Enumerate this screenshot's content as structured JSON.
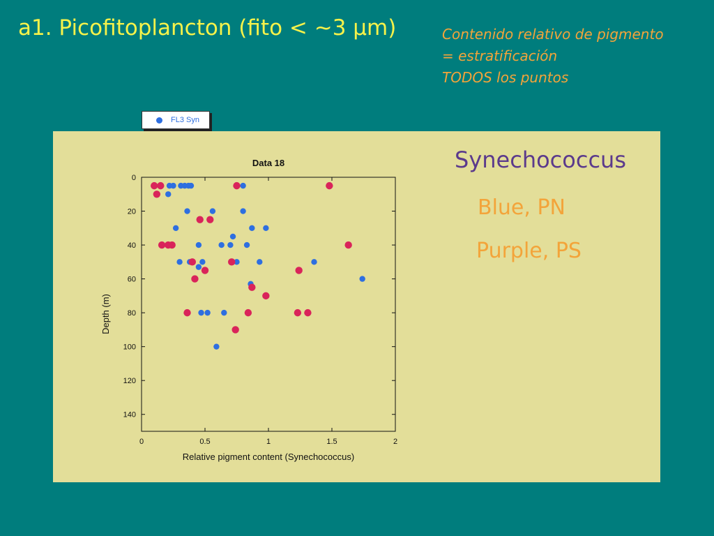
{
  "slide": {
    "title": "a1. Picofitoplancton (fito < ~3 μm)",
    "note_lines": [
      "Contenido relativo de pigmento",
      "= estratificación",
      "TODOS los puntos"
    ],
    "side_title": "Synechococcus",
    "side_blue": "Blue, PN",
    "side_purple": "Purple, PS"
  },
  "legend": {
    "label": "FL3 Syn"
  },
  "colors": {
    "blue": "#2e6fe0",
    "purple": "#d9245a",
    "background": "#007d7d",
    "panel": "#e3de99"
  },
  "chart_data": {
    "type": "scatter",
    "title": "Data 18",
    "xlabel": "Relative pigment content (Synechococcus)",
    "ylabel": "Depth (m)",
    "xlim": [
      0,
      2
    ],
    "ylim": [
      150,
      0
    ],
    "x_ticks": [
      "0",
      "0.5",
      "1",
      "1.5",
      "2"
    ],
    "y_ticks": [
      "0",
      "20",
      "40",
      "60",
      "80",
      "100",
      "120",
      "140"
    ],
    "series": [
      {
        "name": "FL3 Syn",
        "color": "#2e6fe0",
        "points": [
          [
            0.22,
            5
          ],
          [
            0.25,
            5
          ],
          [
            0.31,
            5
          ],
          [
            0.34,
            5
          ],
          [
            0.37,
            5
          ],
          [
            0.39,
            5
          ],
          [
            0.8,
            5
          ],
          [
            0.21,
            10
          ],
          [
            0.36,
            20
          ],
          [
            0.56,
            20
          ],
          [
            0.8,
            20
          ],
          [
            0.27,
            30
          ],
          [
            0.87,
            30
          ],
          [
            0.98,
            30
          ],
          [
            0.72,
            35
          ],
          [
            0.45,
            40
          ],
          [
            0.63,
            40
          ],
          [
            0.7,
            40
          ],
          [
            0.83,
            40
          ],
          [
            0.3,
            50
          ],
          [
            0.38,
            50
          ],
          [
            0.48,
            50
          ],
          [
            0.75,
            50
          ],
          [
            0.93,
            50
          ],
          [
            1.36,
            50
          ],
          [
            0.45,
            53
          ],
          [
            1.74,
            60
          ],
          [
            0.86,
            63
          ],
          [
            0.47,
            80
          ],
          [
            0.52,
            80
          ],
          [
            0.65,
            80
          ],
          [
            0.59,
            100
          ]
        ]
      },
      {
        "name": "",
        "color": "#d9245a",
        "points": [
          [
            0.1,
            5
          ],
          [
            0.15,
            5
          ],
          [
            0.75,
            5
          ],
          [
            1.48,
            5
          ],
          [
            0.12,
            10
          ],
          [
            0.46,
            25
          ],
          [
            0.54,
            25
          ],
          [
            0.16,
            40
          ],
          [
            0.21,
            40
          ],
          [
            0.24,
            40
          ],
          [
            1.63,
            40
          ],
          [
            0.4,
            50
          ],
          [
            0.71,
            50
          ],
          [
            0.5,
            55
          ],
          [
            1.24,
            55
          ],
          [
            0.42,
            60
          ],
          [
            0.87,
            65
          ],
          [
            0.98,
            70
          ],
          [
            0.36,
            80
          ],
          [
            0.84,
            80
          ],
          [
            1.23,
            80
          ],
          [
            1.31,
            80
          ],
          [
            0.74,
            90
          ]
        ]
      }
    ]
  }
}
